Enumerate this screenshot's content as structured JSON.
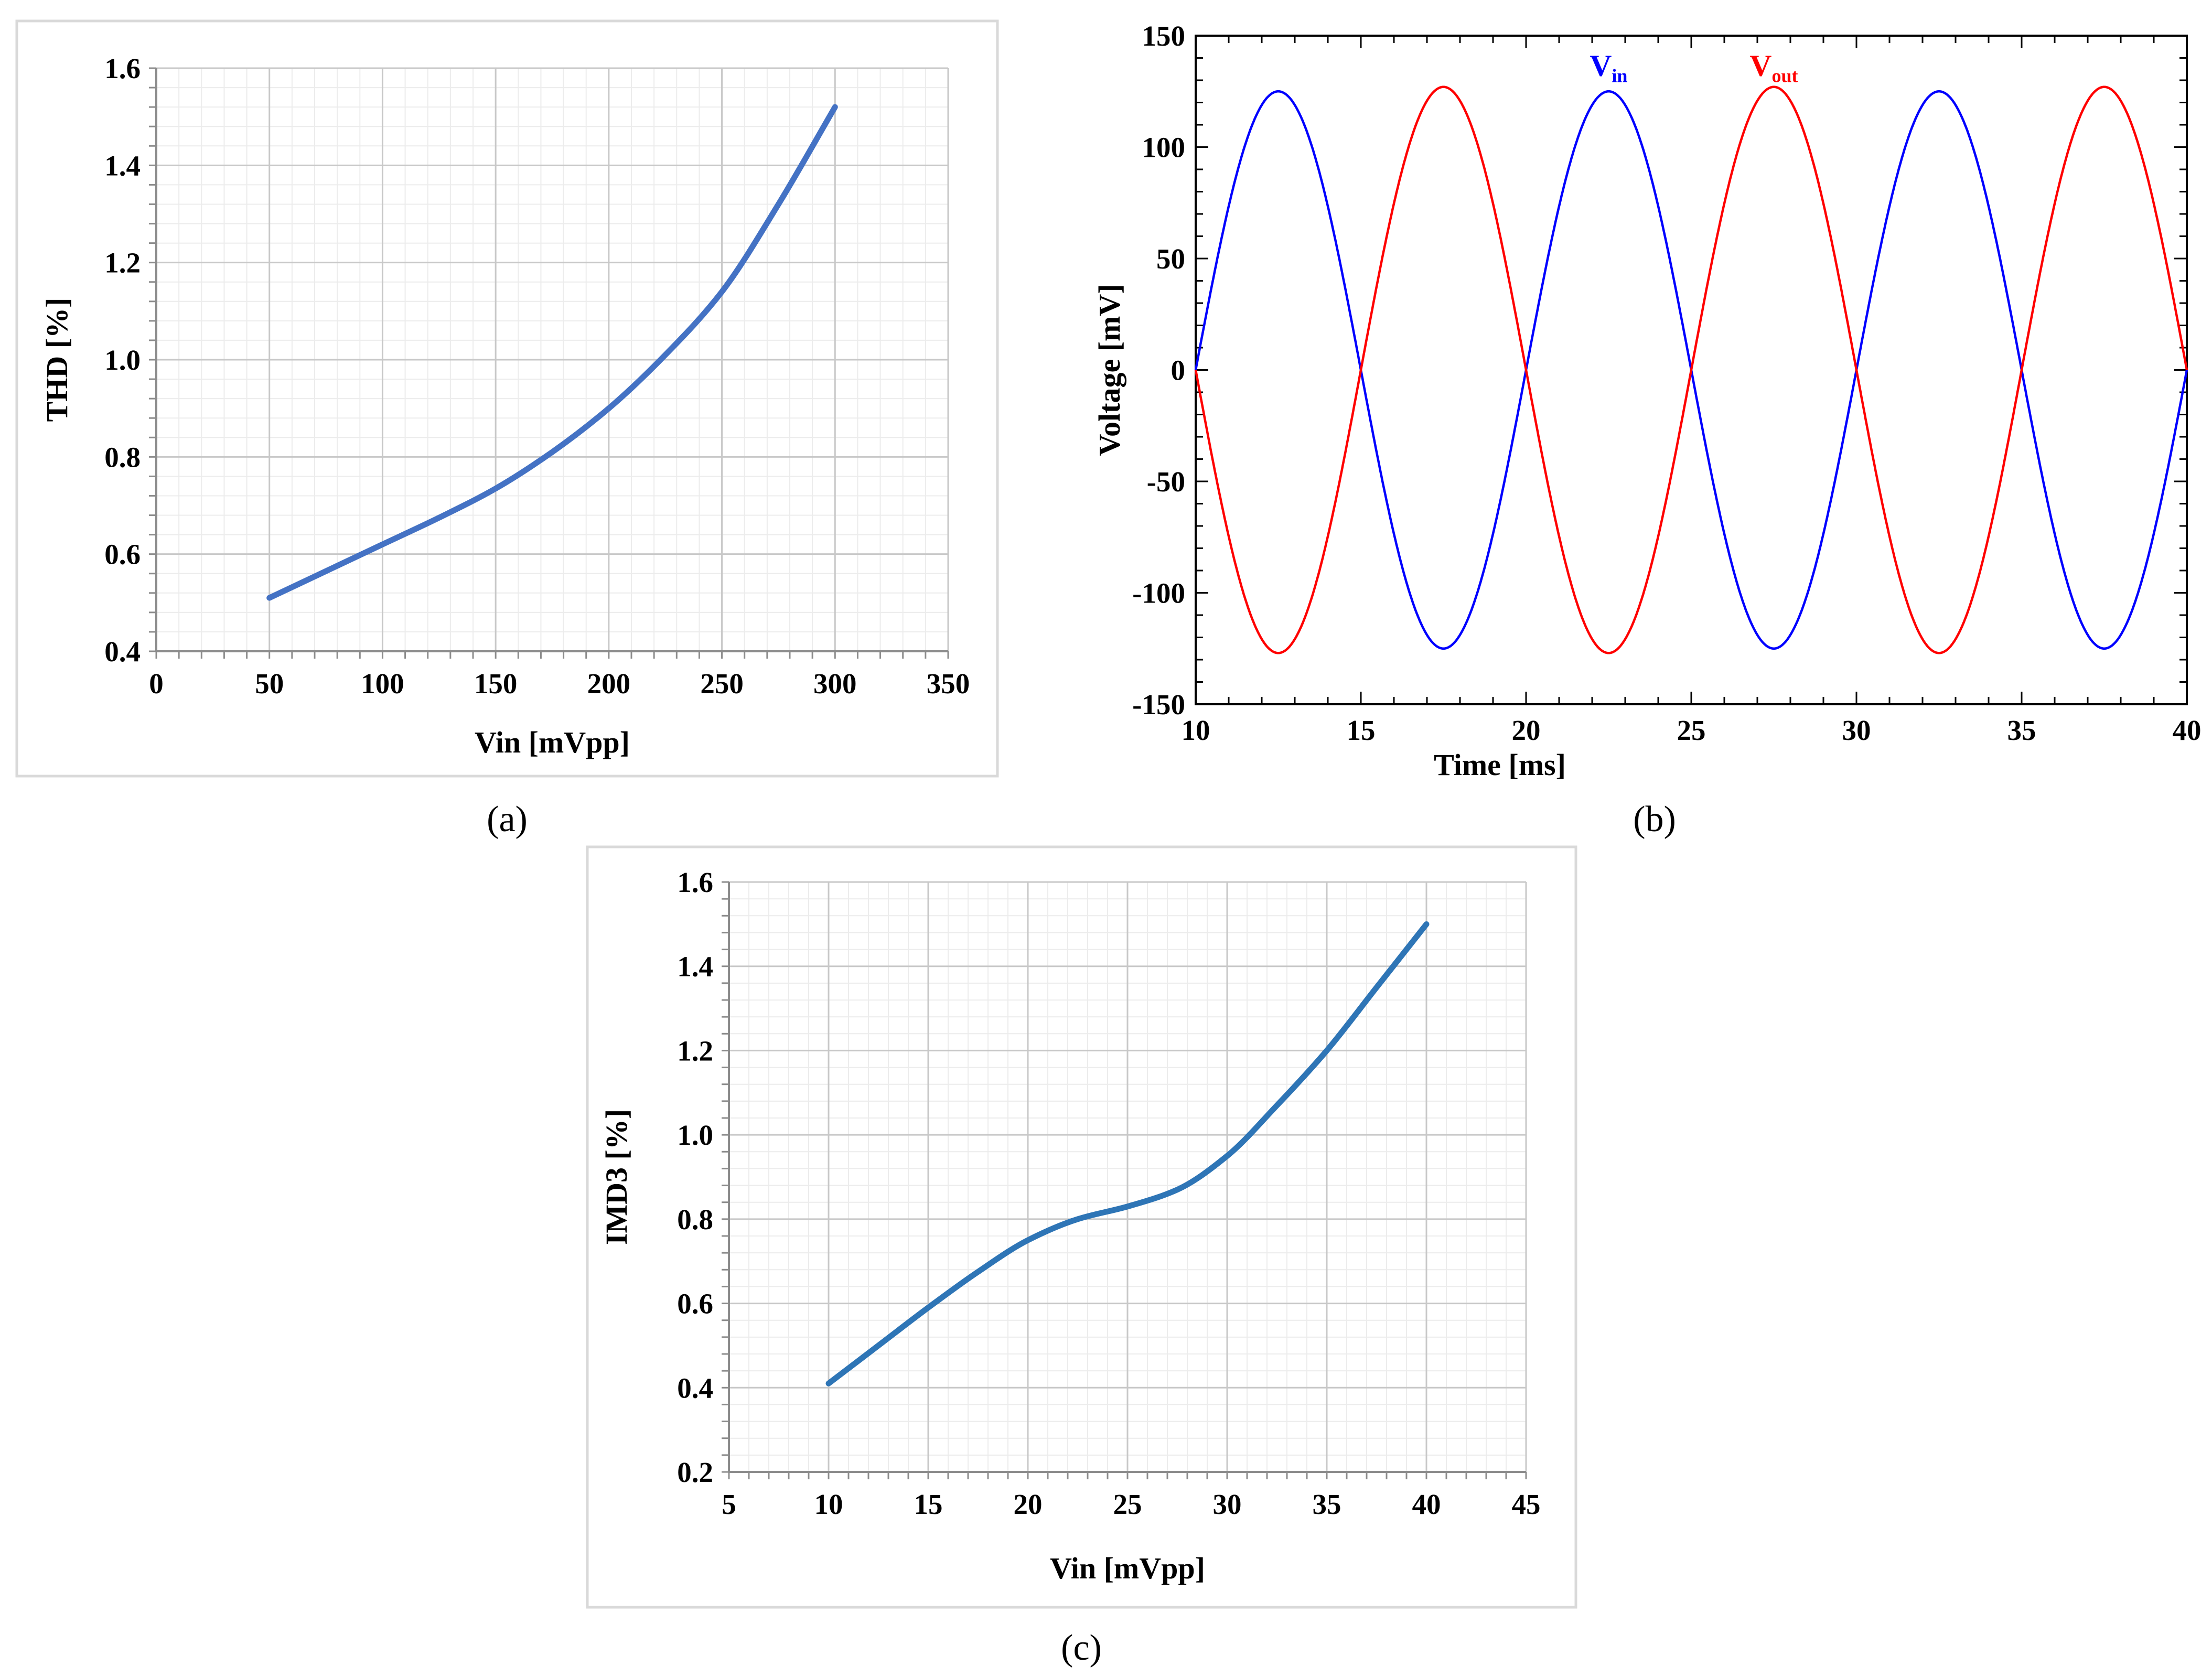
{
  "panel_labels": [
    "(a)",
    "(b)",
    "(c)"
  ],
  "chart_data": [
    {
      "type": "line",
      "panel": "a",
      "xlabel": "Vin [mVpp]",
      "ylabel": "THD [%]",
      "xlim": [
        0,
        350
      ],
      "ylim": [
        0.4,
        1.6
      ],
      "xticks": [
        "0",
        "50",
        "100",
        "150",
        "200",
        "250",
        "300",
        "350"
      ],
      "yticks": [
        "0.4",
        "0.6",
        "0.8",
        "1.0",
        "1.2",
        "1.4",
        "1.6"
      ],
      "grid": true,
      "series": [
        {
          "color": "#4472c4",
          "x": [
            50,
            75,
            100,
            125,
            150,
            175,
            200,
            225,
            250,
            275,
            300
          ],
          "y": [
            0.51,
            0.565,
            0.62,
            0.675,
            0.735,
            0.81,
            0.9,
            1.01,
            1.14,
            1.32,
            1.52
          ]
        }
      ]
    },
    {
      "type": "line",
      "panel": "b",
      "xlabel": "Time [ms]",
      "ylabel": "Voltage [mV]",
      "xlim": [
        10,
        40
      ],
      "ylim": [
        -150,
        150
      ],
      "xticks": [
        "10",
        "15",
        "20",
        "25",
        "30",
        "35",
        "40"
      ],
      "yticks": [
        "-150",
        "-100",
        "-50",
        "0",
        "50",
        "100",
        "150"
      ],
      "grid": false,
      "annotations": [
        {
          "main": "V",
          "sub": "in",
          "color": "#0000ff",
          "x": 22.5,
          "y": 132
        },
        {
          "main": "V",
          "sub": "out",
          "color": "#ff0000",
          "x": 27.5,
          "y": 132
        }
      ],
      "series": [
        {
          "name": "Vin",
          "color": "#0000ff",
          "amplitude": 125,
          "frequency_hz": 100,
          "phase_deg": 0
        },
        {
          "name": "Vout",
          "color": "#ff0000",
          "amplitude": 127,
          "frequency_hz": 100,
          "phase_deg": 180
        }
      ]
    },
    {
      "type": "line",
      "panel": "c",
      "xlabel": "Vin [mVpp]",
      "ylabel": "IMD3 [%]",
      "xlim": [
        5,
        45
      ],
      "ylim": [
        0.2,
        1.6
      ],
      "xticks": [
        "5",
        "10",
        "15",
        "20",
        "25",
        "30",
        "35",
        "40",
        "45"
      ],
      "yticks": [
        "0.2",
        "0.4",
        "0.6",
        "0.8",
        "1.0",
        "1.2",
        "1.4",
        "1.6"
      ],
      "grid": true,
      "series": [
        {
          "color": "#2e75b6",
          "x": [
            10,
            12.5,
            15,
            17.5,
            20,
            22.5,
            25,
            27.5,
            30,
            32.5,
            35,
            37.5,
            40
          ],
          "y": [
            0.41,
            0.5,
            0.59,
            0.675,
            0.75,
            0.8,
            0.83,
            0.87,
            0.95,
            1.07,
            1.2,
            1.35,
            1.5
          ]
        }
      ]
    }
  ]
}
